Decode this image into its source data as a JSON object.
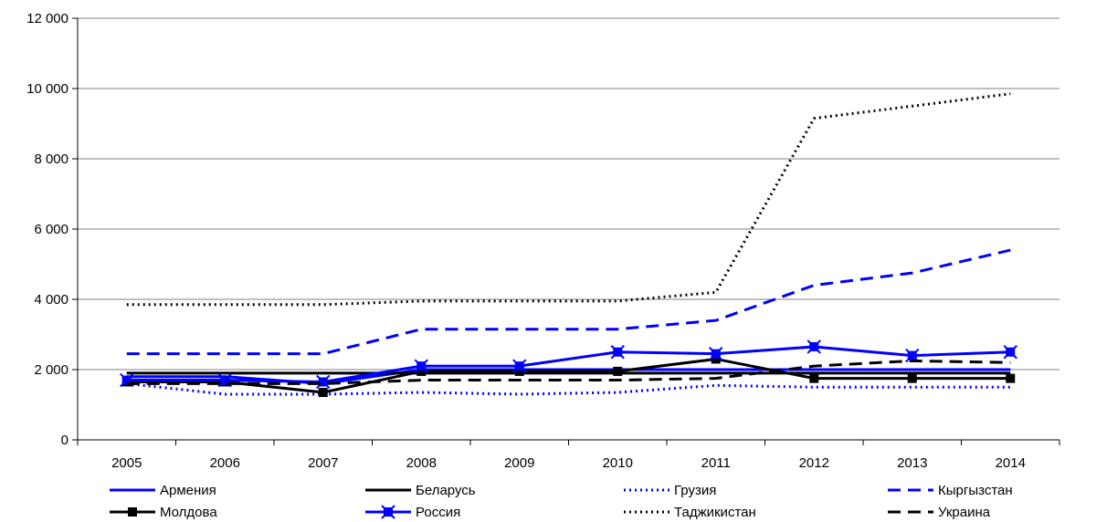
{
  "chart_data": {
    "type": "line",
    "title": "",
    "xlabel": "",
    "ylabel": "",
    "x": [
      "2005",
      "2006",
      "2007",
      "2008",
      "2009",
      "2010",
      "2011",
      "2012",
      "2013",
      "2014"
    ],
    "ylim": [
      0,
      12000
    ],
    "yticks": [
      0,
      2000,
      4000,
      6000,
      8000,
      10000,
      12000
    ],
    "ytick_labels": [
      "0",
      "2 000",
      "4 000",
      "6 000",
      "8 000",
      "10 000",
      "12 000"
    ],
    "grid": "horizontal",
    "legend_position": "bottom",
    "series": [
      {
        "name": "Армения",
        "color": "#0000ff",
        "style": "solid",
        "marker": "none",
        "values": [
          1800,
          1800,
          1600,
          2000,
          2000,
          2000,
          2000,
          2000,
          2000,
          2000
        ]
      },
      {
        "name": "Беларусь",
        "color": "#000000",
        "style": "solid",
        "marker": "none",
        "values": [
          1900,
          1900,
          1900,
          1900,
          1900,
          1900,
          1900,
          1900,
          1900,
          1900
        ]
      },
      {
        "name": "Грузия",
        "color": "#0000ff",
        "style": "dotted",
        "marker": "none",
        "values": [
          1600,
          1300,
          1300,
          1350,
          1300,
          1350,
          1550,
          1500,
          1500,
          1500
        ]
      },
      {
        "name": "Кыргызстан",
        "color": "#0000ff",
        "style": "dashed",
        "marker": "none",
        "values": [
          2450,
          2450,
          2450,
          3150,
          3150,
          3150,
          3400,
          4400,
          4750,
          5400
        ]
      },
      {
        "name": "Молдова",
        "color": "#000000",
        "style": "solid",
        "marker": "square",
        "values": [
          1650,
          1650,
          1350,
          1950,
          1950,
          1950,
          2300,
          1750,
          1750,
          1750
        ]
      },
      {
        "name": "Россия",
        "color": "#0000ff",
        "style": "solid",
        "marker": "star",
        "values": [
          1700,
          1700,
          1650,
          2100,
          2100,
          2500,
          2450,
          2650,
          2400,
          2500
        ]
      },
      {
        "name": "Таджикистан",
        "color": "#000000",
        "style": "dotted",
        "marker": "none",
        "values": [
          3850,
          3850,
          3850,
          3950,
          3950,
          3950,
          4200,
          9150,
          9500,
          9850
        ]
      },
      {
        "name": "Украина",
        "color": "#000000",
        "style": "dashed",
        "marker": "none",
        "values": [
          1600,
          1600,
          1600,
          1700,
          1700,
          1700,
          1750,
          2100,
          2250,
          2200
        ]
      }
    ]
  }
}
